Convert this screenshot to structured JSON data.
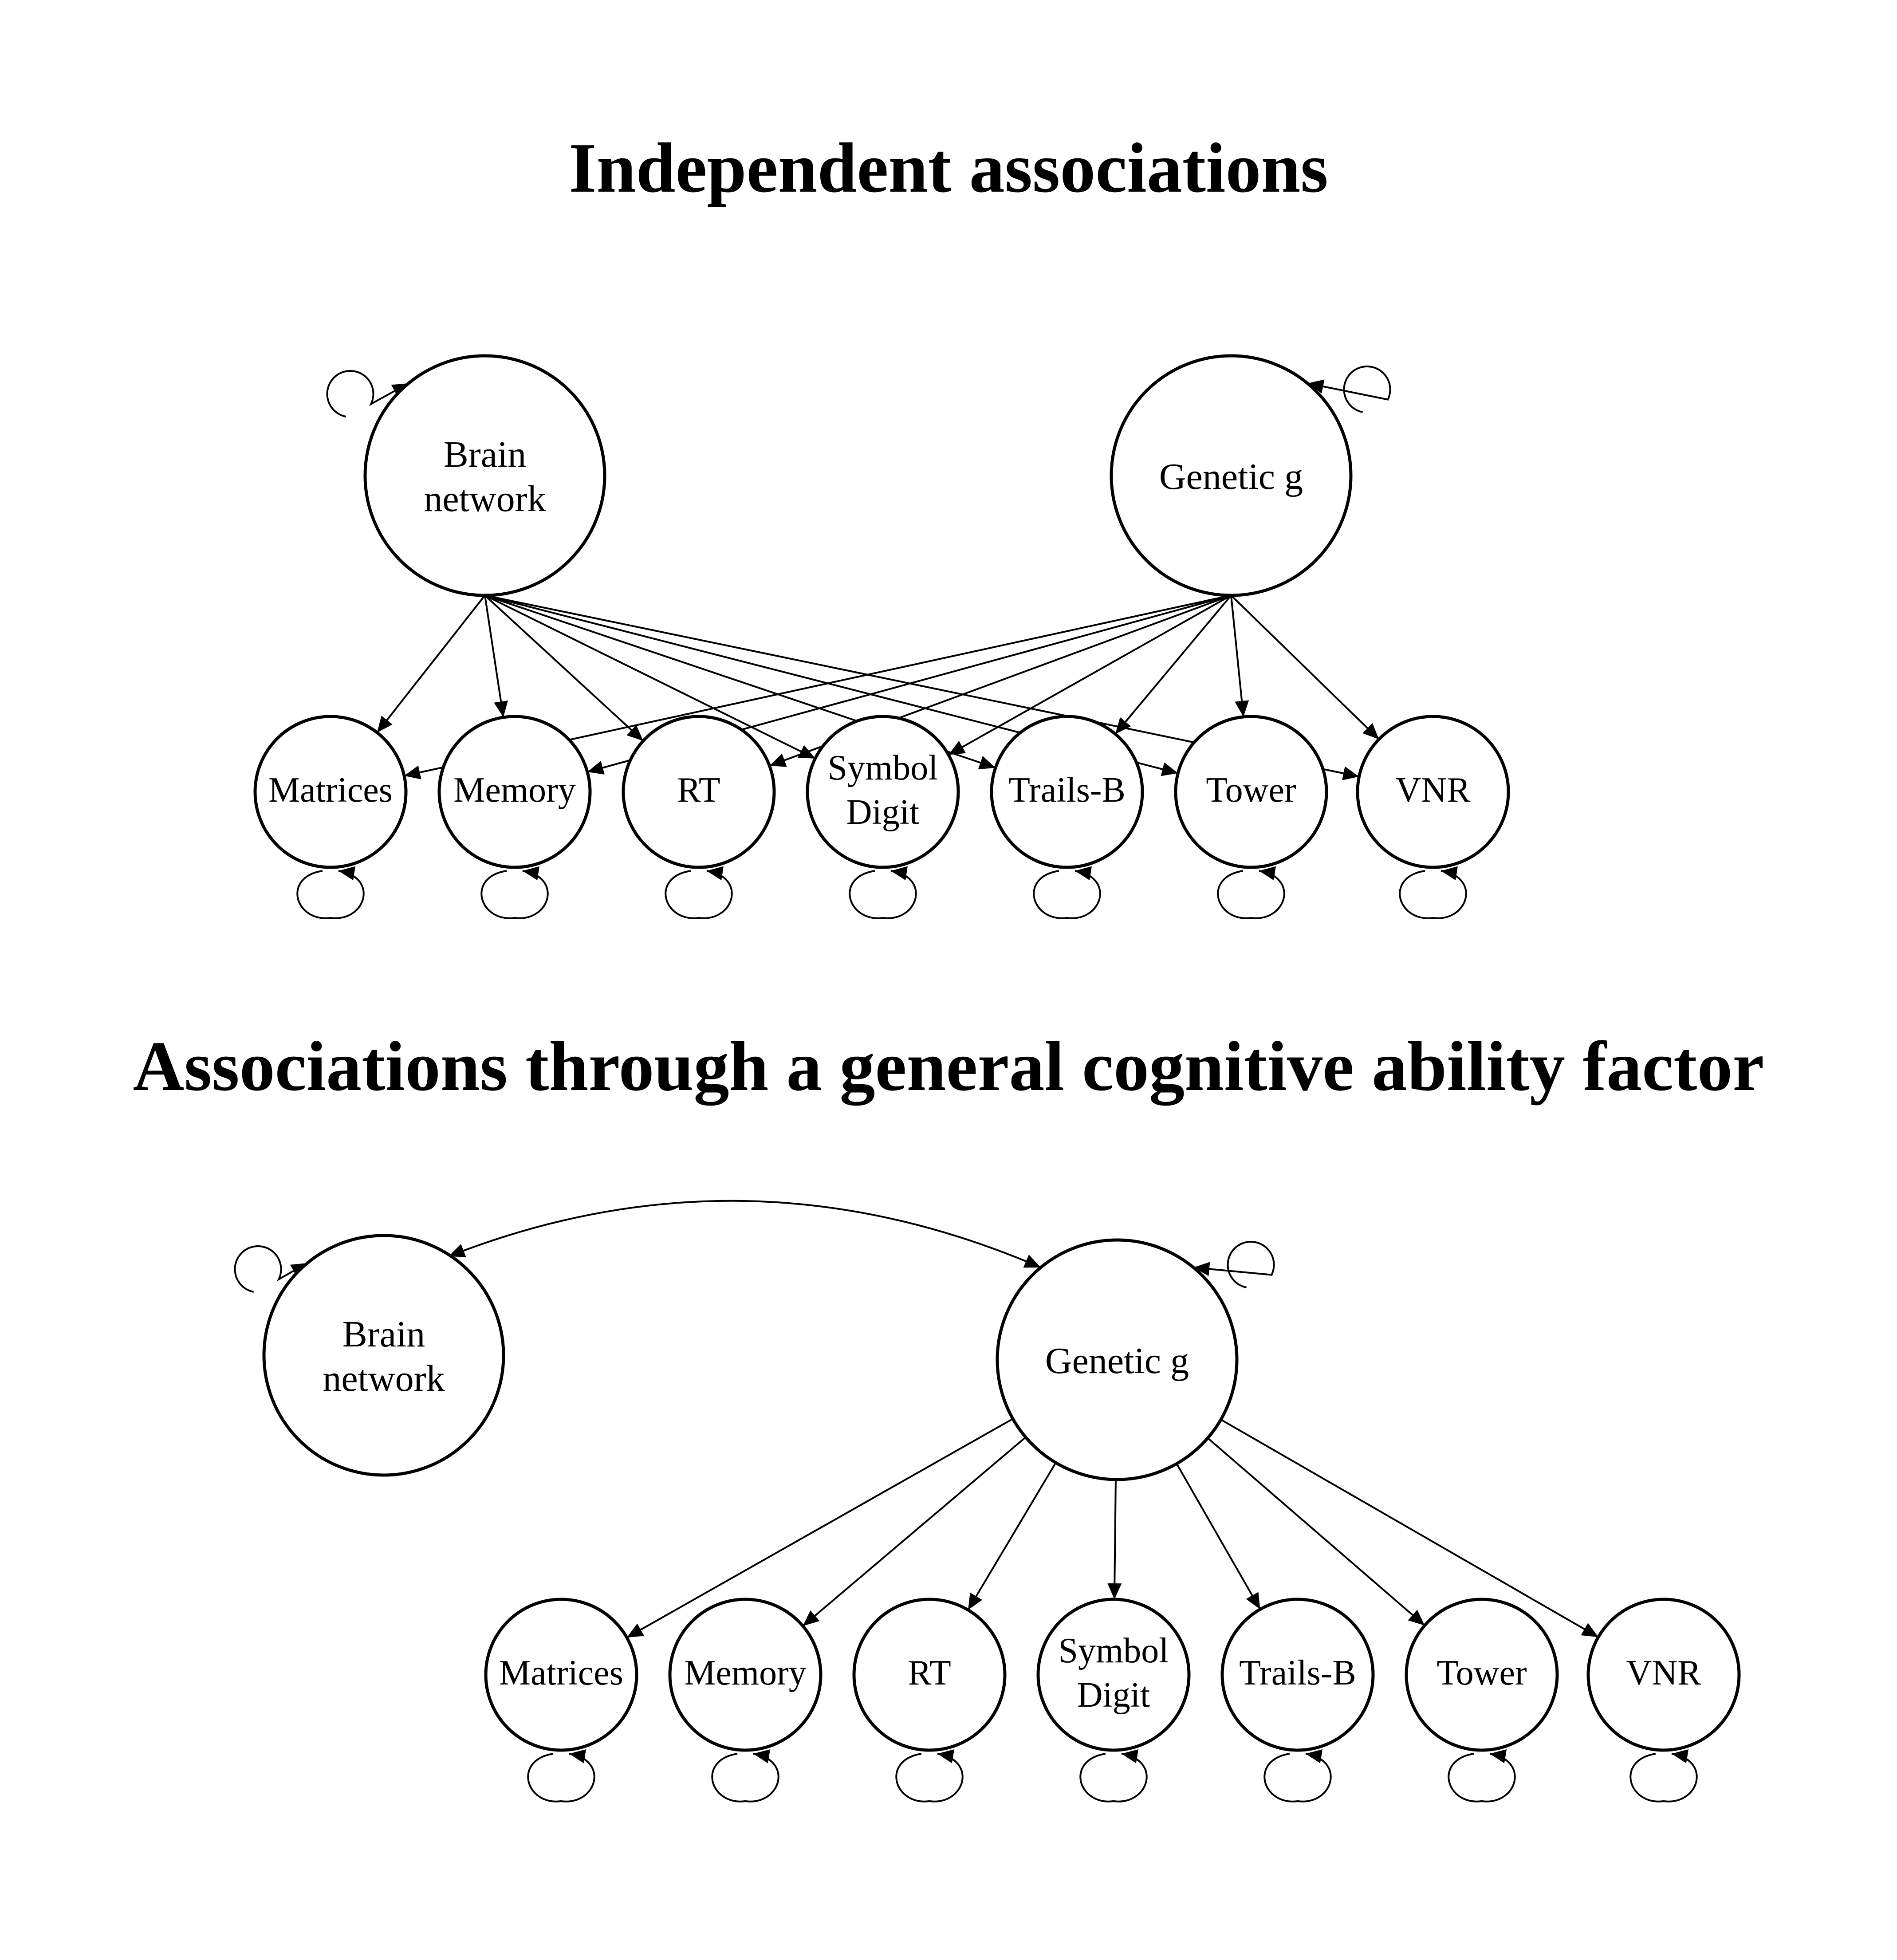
{
  "panels": [
    {
      "id": "independent",
      "title": "Independent associations",
      "latents": [
        {
          "id": "brain",
          "lines": [
            "Brain",
            "network"
          ]
        },
        {
          "id": "genetic",
          "lines": [
            "Genetic g"
          ]
        }
      ],
      "indicators": [
        {
          "id": "matrices",
          "lines": [
            "Matrices"
          ]
        },
        {
          "id": "memory",
          "lines": [
            "Memory"
          ]
        },
        {
          "id": "rt",
          "lines": [
            "RT"
          ]
        },
        {
          "id": "symbol",
          "lines": [
            "Symbol",
            "Digit"
          ]
        },
        {
          "id": "trails",
          "lines": [
            "Trails-B"
          ]
        },
        {
          "id": "tower",
          "lines": [
            "Tower"
          ]
        },
        {
          "id": "vnr",
          "lines": [
            "VNR"
          ]
        }
      ],
      "paths_from": [
        "brain",
        "genetic"
      ],
      "covariance": []
    },
    {
      "id": "general",
      "title": "Associations through a general cognitive ability factor",
      "latents": [
        {
          "id": "brain",
          "lines": [
            "Brain",
            "network"
          ]
        },
        {
          "id": "genetic",
          "lines": [
            "Genetic g"
          ]
        }
      ],
      "indicators": [
        {
          "id": "matrices",
          "lines": [
            "Matrices"
          ]
        },
        {
          "id": "memory",
          "lines": [
            "Memory"
          ]
        },
        {
          "id": "rt",
          "lines": [
            "RT"
          ]
        },
        {
          "id": "symbol",
          "lines": [
            "Symbol",
            "Digit"
          ]
        },
        {
          "id": "trails",
          "lines": [
            "Trails-B"
          ]
        },
        {
          "id": "tower",
          "lines": [
            "Tower"
          ]
        },
        {
          "id": "vnr",
          "lines": [
            "VNR"
          ]
        }
      ],
      "paths_from": [
        "genetic"
      ],
      "covariance": [
        [
          "brain",
          "genetic"
        ]
      ]
    }
  ]
}
